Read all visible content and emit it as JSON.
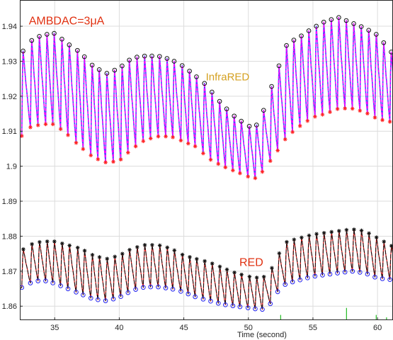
{
  "chart_data": {
    "type": "line",
    "title": "",
    "xlabel": "Time (second)",
    "ylabel": "",
    "xlim": [
      32.3,
      61.2
    ],
    "ylim": [
      1.856,
      1.9475
    ],
    "x_ticks": [
      35,
      40,
      45,
      50,
      55,
      60
    ],
    "y_ticks": [
      1.86,
      1.87,
      1.88,
      1.89,
      1.9,
      1.91,
      1.92,
      1.93,
      1.94
    ],
    "grid": true,
    "colors": {
      "infrared_line": "#ff00ff",
      "infrared_under": "#3355ff",
      "infrared_max_marker": "#111111",
      "infrared_min_marker": "#ff2020",
      "red_line": "#111111",
      "red_under": "#dd1111",
      "red_max_marker": "#111111",
      "red_min_marker": "#2222ee",
      "annotation_ambdac": "#e03010",
      "annotation_infrared": "#d4a020",
      "annotation_red": "#e03010",
      "noise": "#22bb22"
    },
    "annotations": [
      {
        "id": "ambdac",
        "text": "AMBDAC=3μA",
        "x": 33.0,
        "y": 1.9405
      },
      {
        "id": "infrared",
        "text": "InfraRED",
        "x": 46.7,
        "y": 1.9245
      },
      {
        "id": "red",
        "text": "RED",
        "x": 49.3,
        "y": 1.8715
      }
    ],
    "series": [
      {
        "name": "InfraRED",
        "peak_time": 0.1,
        "t": [
          32.3,
          33.0,
          34.0,
          35.0,
          36.0,
          37.0,
          38.0,
          39.0,
          40.0,
          41.0,
          42.0,
          43.0,
          44.0,
          45.0,
          46.0,
          46.4,
          47.0,
          48.0,
          49.0,
          50.0,
          50.5,
          51.0,
          52.0,
          53.0,
          54.0,
          55.0,
          56.0,
          57.0,
          58.0,
          59.0,
          60.0,
          61.2
        ],
        "max": [
          1.9315,
          1.9355,
          1.9375,
          1.938,
          1.935,
          1.9325,
          1.9285,
          1.9265,
          1.928,
          1.931,
          1.9315,
          1.9315,
          1.9305,
          1.9285,
          1.9255,
          1.9245,
          1.922,
          1.9175,
          1.914,
          1.9115,
          1.911,
          1.914,
          1.925,
          1.935,
          1.937,
          1.9395,
          1.9415,
          1.9425,
          1.941,
          1.9395,
          1.9375,
          1.932
        ],
        "min": [
          1.908,
          1.911,
          1.912,
          1.912,
          1.909,
          1.9055,
          1.9025,
          1.901,
          1.9015,
          1.905,
          1.9075,
          1.9085,
          1.9085,
          1.907,
          1.9055,
          1.904,
          1.902,
          1.9,
          1.8985,
          1.897,
          1.8965,
          1.898,
          1.903,
          1.9085,
          1.9115,
          1.914,
          1.915,
          1.9165,
          1.9165,
          1.9155,
          1.9135,
          1.9125
        ],
        "beat_times": [
          32.45,
          33.12,
          33.71,
          34.3,
          34.86,
          35.46,
          36.03,
          36.66,
          37.2,
          37.8,
          38.35,
          38.94,
          39.54,
          40.12,
          40.68,
          41.27,
          41.86,
          42.43,
          43.02,
          43.6,
          44.15,
          44.77,
          45.34,
          45.88,
          46.5,
          47.08,
          47.67,
          48.22,
          48.8,
          49.35,
          49.97,
          50.53,
          51.08,
          51.7,
          52.27,
          52.85,
          53.42,
          54.0,
          54.58,
          55.16,
          55.74,
          56.32,
          56.9,
          57.48,
          58.06,
          58.64,
          59.22,
          59.8,
          60.38,
          60.96
        ]
      },
      {
        "name": "RED",
        "peak_time": 0.12,
        "t": [
          32.3,
          33.0,
          34.0,
          35.0,
          36.0,
          37.0,
          38.0,
          39.0,
          40.0,
          41.0,
          42.0,
          43.0,
          44.0,
          45.0,
          46.0,
          47.0,
          48.0,
          49.0,
          50.0,
          51.0,
          51.5,
          52.0,
          52.5,
          53.0,
          54.0,
          55.0,
          56.0,
          57.0,
          58.0,
          59.0,
          60.0,
          61.2
        ],
        "max": [
          1.8755,
          1.8775,
          1.8785,
          1.8785,
          1.8775,
          1.8765,
          1.8745,
          1.8735,
          1.8745,
          1.8765,
          1.8775,
          1.8775,
          1.8765,
          1.8745,
          1.8735,
          1.8725,
          1.871,
          1.8695,
          1.8685,
          1.868,
          1.869,
          1.872,
          1.876,
          1.8785,
          1.8795,
          1.8805,
          1.881,
          1.8815,
          1.882,
          1.8815,
          1.8795,
          1.877
        ],
        "min": [
          1.865,
          1.8665,
          1.8675,
          1.8665,
          1.865,
          1.8635,
          1.862,
          1.8615,
          1.8625,
          1.8645,
          1.8655,
          1.8655,
          1.865,
          1.864,
          1.8625,
          1.8615,
          1.8605,
          1.86,
          1.8595,
          1.859,
          1.8595,
          1.8625,
          1.8655,
          1.8665,
          1.8675,
          1.8685,
          1.869,
          1.8695,
          1.87,
          1.8695,
          1.868,
          1.8675
        ],
        "beat_times": [
          32.45,
          33.12,
          33.71,
          34.3,
          34.86,
          35.46,
          36.03,
          36.66,
          37.2,
          37.8,
          38.35,
          38.94,
          39.54,
          40.12,
          40.68,
          41.27,
          41.86,
          42.43,
          43.02,
          43.6,
          44.15,
          44.77,
          45.34,
          45.88,
          46.5,
          47.08,
          47.67,
          48.22,
          48.8,
          49.35,
          49.97,
          50.53,
          51.08,
          51.7,
          52.27,
          52.85,
          53.42,
          54.0,
          54.58,
          55.16,
          55.74,
          56.32,
          56.9,
          57.48,
          58.06,
          58.64,
          59.22,
          59.8,
          60.38,
          60.96
        ]
      }
    ],
    "noise_spikes": [
      {
        "x": 52.5,
        "y0": 1.856,
        "y1": 1.8575
      },
      {
        "x": 57.6,
        "y0": 1.856,
        "y1": 1.8595
      },
      {
        "x": 59.9,
        "y0": 1.856,
        "y1": 1.8575
      },
      {
        "x": 60.7,
        "y0": 1.856,
        "y1": 1.8568
      }
    ]
  }
}
